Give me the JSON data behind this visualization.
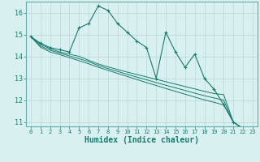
{
  "title": "",
  "xlabel": "Humidex (Indice chaleur)",
  "x": [
    0,
    1,
    2,
    3,
    4,
    5,
    6,
    7,
    8,
    9,
    10,
    11,
    12,
    13,
    14,
    15,
    16,
    17,
    18,
    19,
    20,
    21,
    22,
    23
  ],
  "line1": [
    14.9,
    14.6,
    14.4,
    14.3,
    14.2,
    15.3,
    15.5,
    16.3,
    16.1,
    15.5,
    15.1,
    14.7,
    14.4,
    13.0,
    15.1,
    14.2,
    13.5,
    14.1,
    13.0,
    12.5,
    11.8,
    11.0,
    10.7,
    10.6
  ],
  "line2": [
    14.9,
    14.55,
    14.35,
    14.2,
    14.1,
    14.0,
    13.82,
    13.65,
    13.52,
    13.4,
    13.28,
    13.17,
    13.06,
    12.95,
    12.84,
    12.73,
    12.62,
    12.51,
    12.4,
    12.3,
    12.25,
    11.0,
    10.7,
    10.6
  ],
  "line3": [
    14.9,
    14.48,
    14.28,
    14.15,
    14.02,
    13.89,
    13.76,
    13.58,
    13.44,
    13.31,
    13.18,
    13.05,
    12.93,
    12.8,
    12.68,
    12.56,
    12.44,
    12.32,
    12.2,
    12.1,
    12.0,
    11.0,
    10.7,
    10.6
  ],
  "line4": [
    14.9,
    14.42,
    14.2,
    14.08,
    13.94,
    13.8,
    13.66,
    13.5,
    13.36,
    13.22,
    13.08,
    12.94,
    12.8,
    12.67,
    12.53,
    12.4,
    12.27,
    12.14,
    12.01,
    11.9,
    11.78,
    11.0,
    10.7,
    10.6
  ],
  "color": "#1a7a6e",
  "bg_color": "#d8f0f0",
  "grid_color": "#b8d8d8",
  "ylim": [
    10.8,
    16.5
  ],
  "yticks": [
    11,
    12,
    13,
    14,
    15,
    16
  ],
  "xlim": [
    -0.5,
    23.5
  ],
  "xticks": [
    0,
    1,
    2,
    3,
    4,
    5,
    6,
    7,
    8,
    9,
    10,
    11,
    12,
    13,
    14,
    15,
    16,
    17,
    18,
    19,
    20,
    21,
    22,
    23
  ]
}
